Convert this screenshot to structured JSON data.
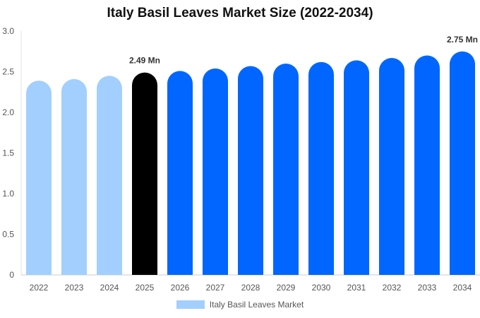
{
  "chart_data": {
    "type": "bar",
    "title": "Italy Basil Leaves Market Size (2022-2034)",
    "categories": [
      "2022",
      "2023",
      "2024",
      "2025",
      "2026",
      "2027",
      "2028",
      "2029",
      "2030",
      "2031",
      "2032",
      "2033",
      "2034"
    ],
    "series": [
      {
        "name": "Italy Basil Leaves Market",
        "values": [
          2.39,
          2.41,
          2.45,
          2.49,
          2.51,
          2.54,
          2.57,
          2.6,
          2.62,
          2.64,
          2.67,
          2.7,
          2.75
        ]
      }
    ],
    "bar_colors": [
      "#a2cffe",
      "#a2cffe",
      "#a2cffe",
      "#000000",
      "#0066ff",
      "#0066ff",
      "#0066ff",
      "#0066ff",
      "#0066ff",
      "#0066ff",
      "#0066ff",
      "#0066ff",
      "#0066ff"
    ],
    "data_labels": [
      {
        "category": "2025",
        "text": "2.49 Mn"
      },
      {
        "category": "2034",
        "text": "2.75 Mn"
      }
    ],
    "y_ticks": [
      "0",
      "0.5",
      "1.0",
      "1.5",
      "2.0",
      "2.5",
      "3.0"
    ],
    "ylim": [
      0,
      3
    ],
    "xlabel": "",
    "ylabel": "",
    "grid": false,
    "legend_position": "bottom",
    "legend_color": "#a2cffe"
  }
}
